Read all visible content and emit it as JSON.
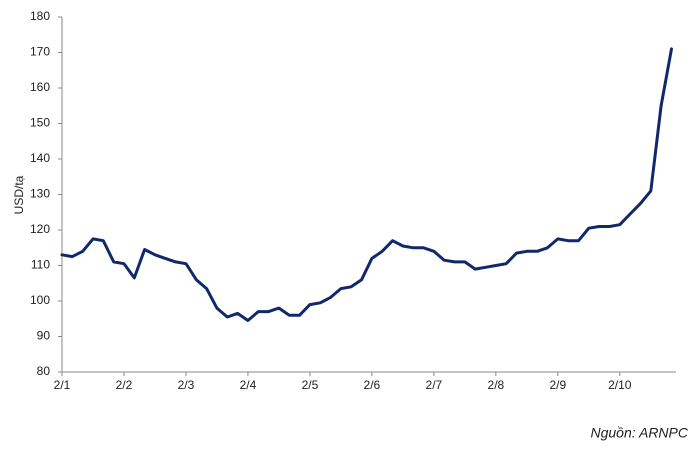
{
  "chart_data": {
    "type": "line",
    "y_label": "USD/tạ",
    "source": "Nguồn: ARNPC",
    "categories": [
      "2/1",
      null,
      null,
      null,
      null,
      null,
      "2/2",
      null,
      null,
      null,
      null,
      null,
      "2/3",
      null,
      null,
      null,
      null,
      null,
      "2/4",
      null,
      null,
      null,
      null,
      null,
      "2/5",
      null,
      null,
      null,
      null,
      null,
      "2/6",
      null,
      null,
      null,
      null,
      null,
      "2/7",
      null,
      null,
      null,
      null,
      null,
      "2/8",
      null,
      null,
      null,
      null,
      null,
      "2/9",
      null,
      null,
      null,
      null,
      null,
      "2/10",
      null,
      null,
      null,
      null,
      null
    ],
    "values": [
      113,
      112.5,
      114,
      117.5,
      117,
      111,
      110.5,
      106.5,
      114.5,
      113,
      112,
      111,
      110.5,
      106,
      103.5,
      98,
      95.5,
      96.5,
      94.5,
      97,
      97,
      98,
      96,
      96,
      99,
      99.5,
      101,
      103.5,
      104,
      106,
      112,
      114,
      117,
      115.5,
      115,
      115,
      114,
      111.5,
      111,
      111,
      109,
      109.5,
      110,
      110.5,
      113.5,
      114,
      114,
      115,
      117.5,
      117,
      117,
      120.5,
      121,
      121,
      121.5,
      124.5,
      127.5,
      131,
      155,
      171
    ],
    "color": "#10296b",
    "ylim": [
      80,
      180
    ],
    "yticks": [
      80,
      90,
      100,
      110,
      120,
      130,
      140,
      150,
      160,
      170,
      180
    ],
    "grid": false
  }
}
